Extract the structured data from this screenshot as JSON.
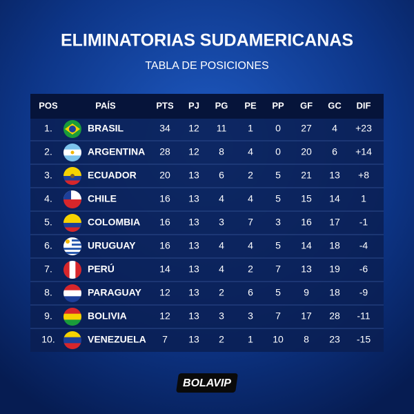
{
  "header": {
    "title": "ELIMINATORIAS SUDAMERICANAS",
    "subtitle": "TABLA DE POSICIONES"
  },
  "table": {
    "columns": [
      "POS",
      "PAÍS",
      "PTS",
      "PJ",
      "PG",
      "PE",
      "PP",
      "GF",
      "GC",
      "DIF"
    ],
    "rows": [
      [
        "1.",
        "BRASIL",
        "34",
        "12",
        "11",
        "1",
        "0",
        "27",
        "4",
        "+23"
      ],
      [
        "2.",
        "ARGENTINA",
        "28",
        "12",
        "8",
        "4",
        "0",
        "20",
        "6",
        "+14"
      ],
      [
        "3.",
        "ECUADOR",
        "20",
        "13",
        "6",
        "2",
        "5",
        "21",
        "13",
        "+8"
      ],
      [
        "4.",
        "CHILE",
        "16",
        "13",
        "4",
        "4",
        "5",
        "15",
        "14",
        "1"
      ],
      [
        "5.",
        "COLOMBIA",
        "16",
        "13",
        "3",
        "7",
        "3",
        "16",
        "17",
        "-1"
      ],
      [
        "6.",
        "URUGUAY",
        "16",
        "13",
        "4",
        "4",
        "5",
        "14",
        "18",
        "-4"
      ],
      [
        "7.",
        "PERÚ",
        "14",
        "13",
        "4",
        "2",
        "7",
        "13",
        "19",
        "-6"
      ],
      [
        "8.",
        "PARAGUAY",
        "12",
        "13",
        "2",
        "6",
        "5",
        "9",
        "18",
        "-9"
      ],
      [
        "9.",
        "BOLIVIA",
        "12",
        "13",
        "3",
        "3",
        "7",
        "17",
        "28",
        "-11"
      ],
      [
        "10.",
        "VENEZUELA",
        "7",
        "13",
        "2",
        "1",
        "10",
        "8",
        "23",
        "-15"
      ]
    ]
  },
  "footer": {
    "logo": "BOLAVIP"
  }
}
